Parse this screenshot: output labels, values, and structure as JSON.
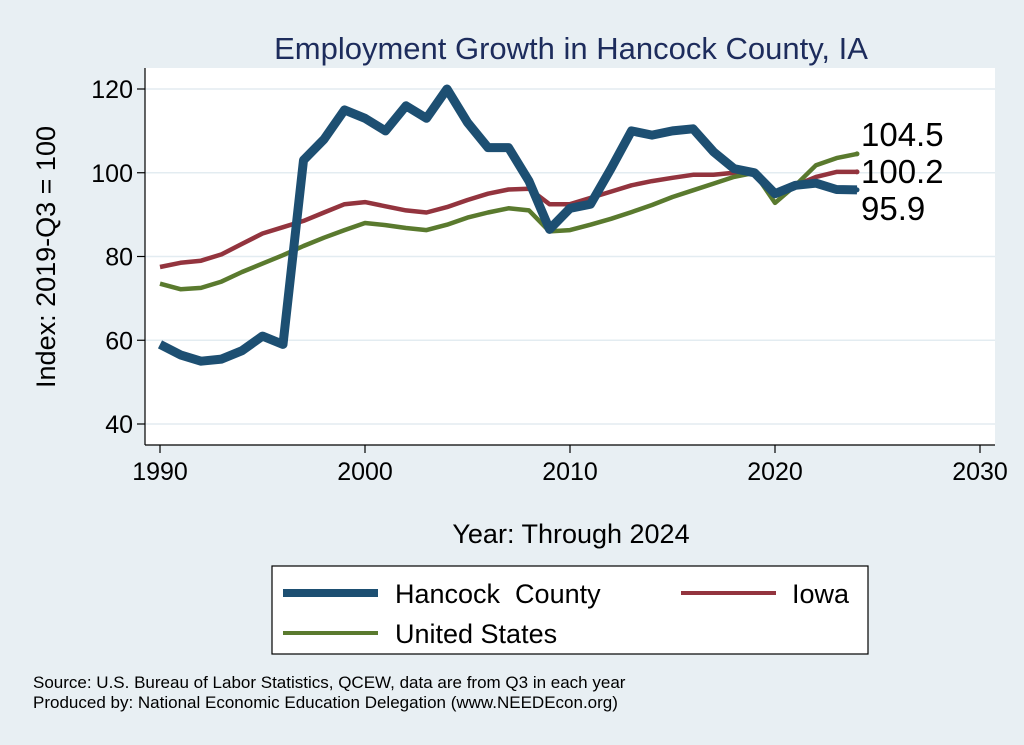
{
  "chart_data": {
    "type": "line",
    "title": "Employment Growth in Hancock County, IA",
    "xlabel": "Year: Through 2024",
    "ylabel": "Index: 2019-Q3 = 100",
    "xlim": [
      1990,
      2030
    ],
    "ylim": [
      40,
      120
    ],
    "xticks": [
      1990,
      2000,
      2010,
      2020,
      2030
    ],
    "yticks": [
      40,
      60,
      80,
      100,
      120
    ],
    "grid": true,
    "legend_position": "bottom",
    "x": [
      1990,
      1991,
      1992,
      1993,
      1994,
      1995,
      1996,
      1997,
      1998,
      1999,
      2000,
      2001,
      2002,
      2003,
      2004,
      2005,
      2006,
      2007,
      2008,
      2009,
      2010,
      2011,
      2012,
      2013,
      2014,
      2015,
      2016,
      2017,
      2018,
      2019,
      2020,
      2021,
      2022,
      2023,
      2024
    ],
    "series": [
      {
        "name": "Hancock  County",
        "color": "#1d4f72",
        "values": [
          59,
          56.5,
          55,
          55.5,
          57.5,
          61,
          59,
          103,
          108,
          115,
          113,
          110,
          116,
          113,
          120,
          112,
          106,
          106,
          98,
          86.5,
          91.5,
          92.5,
          101,
          110,
          109,
          110,
          110.5,
          105,
          101,
          100,
          95,
          97,
          97.5,
          96,
          95.9
        ]
      },
      {
        "name": "Iowa",
        "color": "#93343e",
        "values": [
          77.5,
          78.5,
          79,
          80.5,
          83,
          85.5,
          87,
          88.5,
          90.5,
          92.5,
          93,
          92,
          91,
          90.5,
          91.8,
          93.5,
          95,
          96,
          96.2,
          92.5,
          92.5,
          94,
          95.5,
          97,
          98,
          98.8,
          99.5,
          99.5,
          100,
          100,
          94.5,
          97,
          99,
          100.2,
          100.2
        ]
      },
      {
        "name": "United States",
        "color": "#5a7a2e",
        "values": [
          73.5,
          72.2,
          72.5,
          74,
          76.3,
          78.3,
          80.3,
          82.5,
          84.5,
          86.3,
          88,
          87.5,
          86.8,
          86.3,
          87.6,
          89.3,
          90.5,
          91.5,
          91,
          86,
          86.3,
          87.6,
          89,
          90.6,
          92.3,
          94.2,
          95.8,
          97.4,
          99,
          100,
          92.8,
          97,
          101.8,
          103.5,
          104.5
        ]
      }
    ],
    "end_labels": [
      {
        "series": "United States",
        "text": "104.5"
      },
      {
        "series": "Iowa",
        "text": "100.2"
      },
      {
        "series": "Hancock  County",
        "text": "95.9"
      }
    ]
  },
  "footer": {
    "source": "Source: U.S. Bureau of Labor Statistics, QCEW, data are from Q3 in each year",
    "produced_by": "Produced by: National Economic Education Delegation (www.NEEDEcon.org)"
  }
}
